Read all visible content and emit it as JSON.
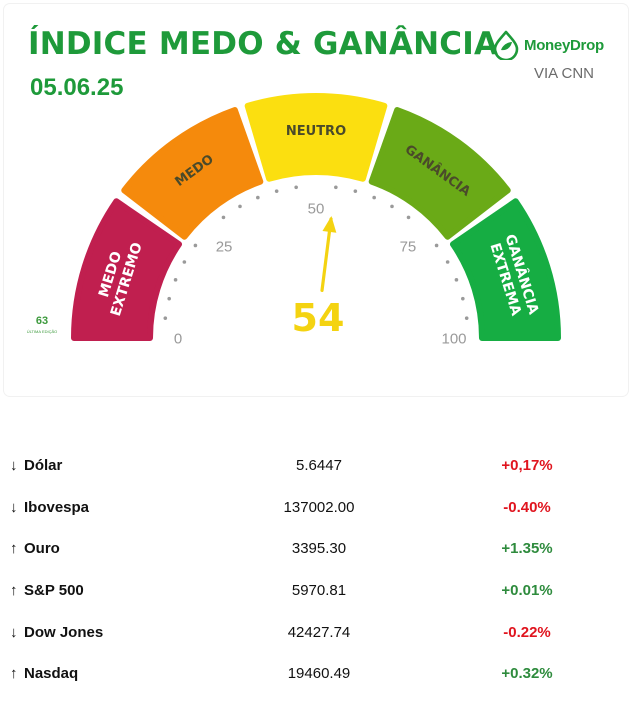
{
  "header": {
    "title": "ÍNDICE MEDO & GANÂNCIA",
    "date": "05.06.25",
    "brand_name": "MoneyDrop",
    "brand_sub": "VIA CNN",
    "brand_icon": "leaf-drop-icon"
  },
  "gauge": {
    "value": 54,
    "needle_value": 54,
    "segments": [
      {
        "label": "MEDO EXTREMO",
        "color": "#c01f4f"
      },
      {
        "label": "MEDO",
        "color": "#f58a0c"
      },
      {
        "label": "NEUTRO",
        "color": "#fbdf10"
      },
      {
        "label": "GANÂNCIA",
        "color": "#6aaa17"
      },
      {
        "label": "GANÂNCIA EXTREMA",
        "color": "#16ad43"
      }
    ],
    "ticks": [
      "0",
      "25",
      "50",
      "75",
      "100"
    ],
    "value_color": "#f4d311",
    "previous": {
      "value": "63",
      "label": "ÚLTIMA EDIÇÃO"
    }
  },
  "market": [
    {
      "arrow": "↓",
      "name": "Dólar",
      "value": "5.6447",
      "change": "+0,17%",
      "change_color": "down"
    },
    {
      "arrow": "↓",
      "name": "Ibovespa",
      "value": "137002.00",
      "change": "-0.40%",
      "change_color": "down"
    },
    {
      "arrow": "↑",
      "name": "Ouro",
      "value": "3395.30",
      "change": "+1.35%",
      "change_color": "up"
    },
    {
      "arrow": "↑",
      "name": "S&P 500",
      "value": "5970.81",
      "change": "+0.01%",
      "change_color": "up"
    },
    {
      "arrow": "↓",
      "name": "Dow Jones",
      "value": "42427.74",
      "change": "-0.22%",
      "change_color": "down"
    },
    {
      "arrow": "↑",
      "name": "Nasdaq",
      "value": "19460.49",
      "change": "+0.32%",
      "change_color": "up"
    }
  ]
}
